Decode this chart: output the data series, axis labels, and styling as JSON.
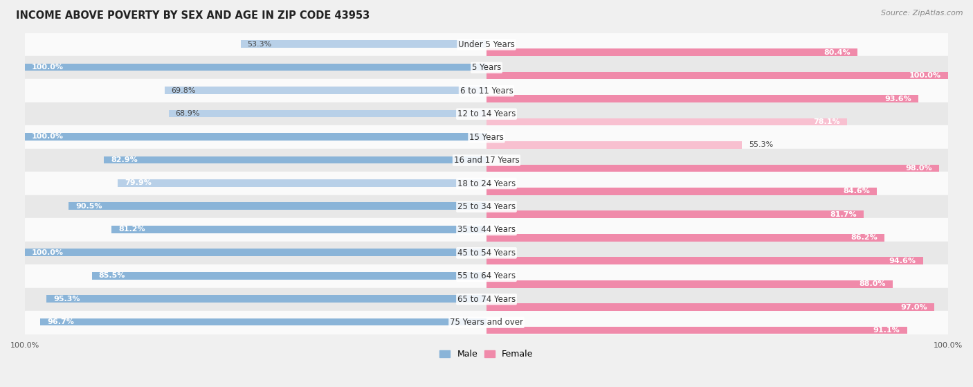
{
  "title": "INCOME ABOVE POVERTY BY SEX AND AGE IN ZIP CODE 43953",
  "source": "Source: ZipAtlas.com",
  "categories": [
    "Under 5 Years",
    "5 Years",
    "6 to 11 Years",
    "12 to 14 Years",
    "15 Years",
    "16 and 17 Years",
    "18 to 24 Years",
    "25 to 34 Years",
    "35 to 44 Years",
    "45 to 54 Years",
    "55 to 64 Years",
    "65 to 74 Years",
    "75 Years and over"
  ],
  "male_values": [
    53.3,
    100.0,
    69.8,
    68.9,
    100.0,
    82.9,
    79.9,
    90.5,
    81.2,
    100.0,
    85.5,
    95.3,
    96.7
  ],
  "female_values": [
    80.4,
    100.0,
    93.6,
    78.1,
    55.3,
    98.0,
    84.6,
    81.7,
    86.2,
    94.6,
    88.0,
    97.0,
    91.1
  ],
  "male_color": "#8ab4d8",
  "female_color": "#f08aaa",
  "male_light_color": "#b8d0e8",
  "female_light_color": "#f8c0d0",
  "background_color": "#f0f0f0",
  "row_light_color": "#fafafa",
  "row_dark_color": "#e8e8e8",
  "bar_height": 0.32,
  "legend_male": "Male",
  "legend_female": "Female",
  "title_fontsize": 10.5,
  "label_fontsize": 8.5,
  "value_fontsize": 8,
  "source_fontsize": 8,
  "xlabel_fontsize": 8
}
